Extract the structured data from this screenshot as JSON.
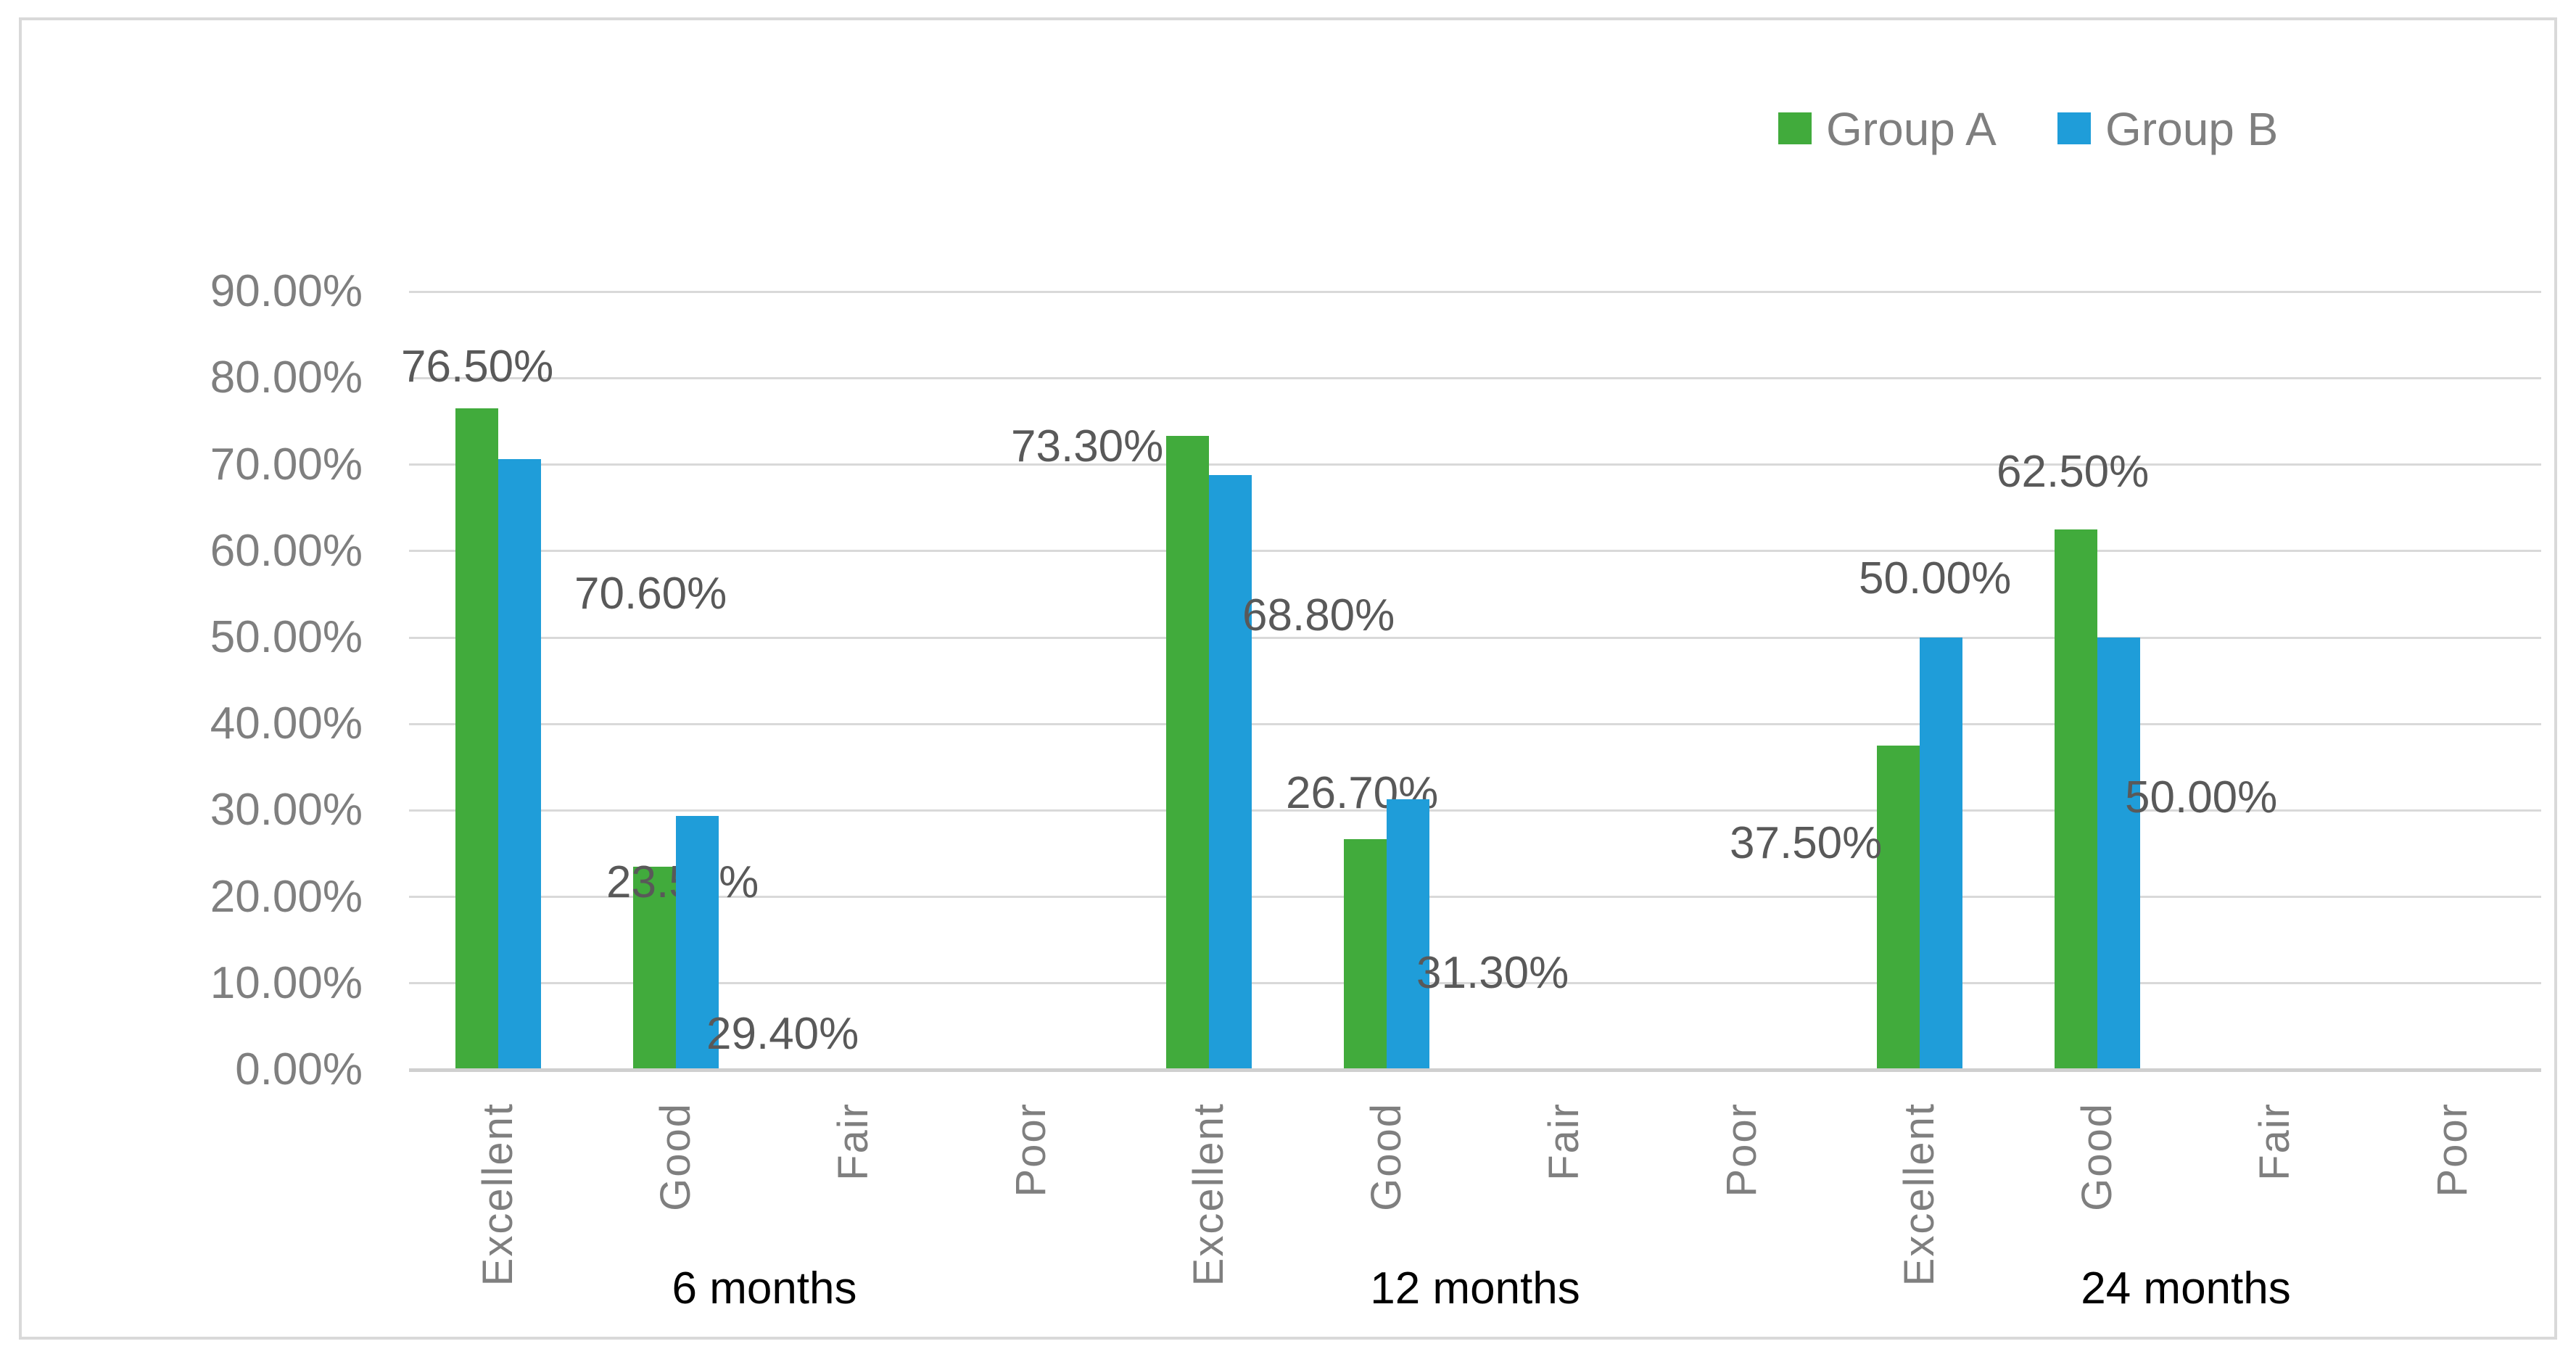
{
  "window": {
    "background": "#ffffff",
    "border_color": "#d9d9d9"
  },
  "legend": {
    "position": "top-right",
    "items": [
      {
        "label": "Group A",
        "color": "#41ab3c"
      },
      {
        "label": "Group B",
        "color": "#1f9dd9"
      }
    ]
  },
  "chart_data": {
    "type": "bar",
    "title": "",
    "xlabel": "",
    "ylabel": "",
    "groups": [
      "6 months",
      "12 months",
      "24 months"
    ],
    "categories": [
      "Excellent",
      "Good",
      "Fair",
      "Poor"
    ],
    "series": [
      {
        "name": "Group A",
        "color": "#41ab3c",
        "values": [
          [
            76.5,
            23.5,
            null,
            null
          ],
          [
            73.3,
            26.7,
            null,
            null
          ],
          [
            37.5,
            62.5,
            null,
            null
          ]
        ],
        "labels": [
          [
            "76.50%",
            "23.50%",
            null,
            null
          ],
          [
            "73.30%",
            "26.70%",
            null,
            null
          ],
          [
            "37.50%",
            "62.50%",
            null,
            null
          ]
        ]
      },
      {
        "name": "Group B",
        "color": "#1f9dd9",
        "values": [
          [
            70.6,
            29.4,
            null,
            null
          ],
          [
            68.8,
            31.3,
            null,
            null
          ],
          [
            50.0,
            50.0,
            null,
            null
          ]
        ],
        "labels": [
          [
            "70.60%",
            "29.40%",
            null,
            null
          ],
          [
            "68.80%",
            "31.30%",
            null,
            null
          ],
          [
            "50.00%",
            "50.00%",
            null,
            null
          ]
        ]
      }
    ],
    "y_axis": {
      "min": 0,
      "max": 90,
      "step": 10,
      "unit": "percent",
      "tick_labels": [
        "0.00%",
        "10.00%",
        "20.00%",
        "30.00%",
        "40.00%",
        "50.00%",
        "60.00%",
        "70.00%",
        "80.00%",
        "90.00%"
      ]
    },
    "grid": true,
    "legend_position": "top-right",
    "colors": {
      "gridline": "#d9d9d9",
      "axis_line": "#cfcfcf",
      "axis_text": "#7f7f7f",
      "data_label_text": "#595959",
      "group_label_text": "#000000"
    }
  }
}
